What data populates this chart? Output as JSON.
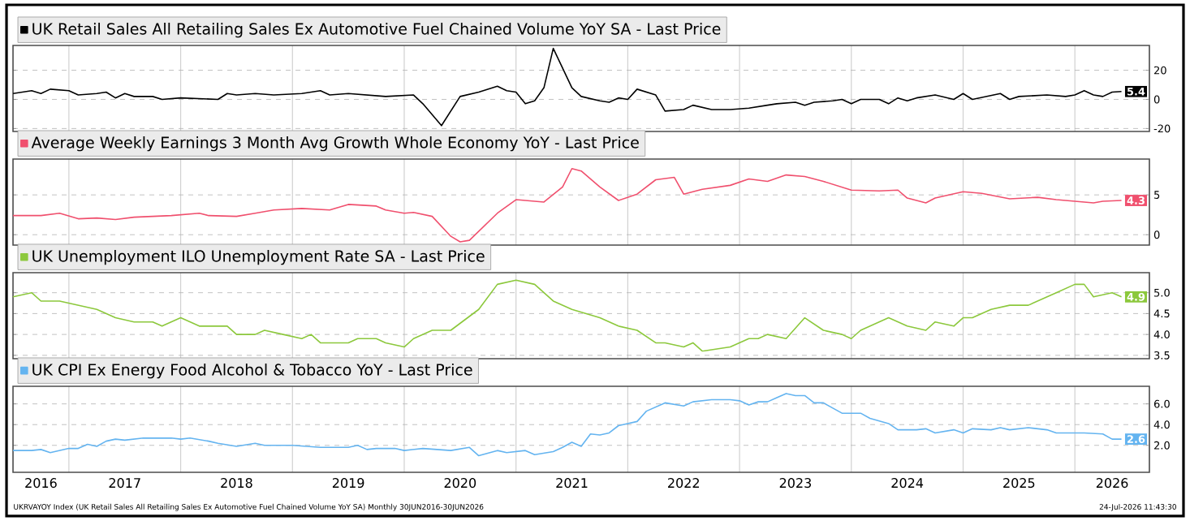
{
  "chart_data": [
    {
      "type": "line",
      "xlim": [
        "2016-07",
        "2026-09"
      ],
      "ylim": [
        -22,
        37
      ],
      "yticks": [
        -20,
        0,
        20
      ],
      "grid": true,
      "legend": "top left",
      "tick_labels": "y",
      "xticks": [
        {
          "value": "2017-01",
          "label": null
        },
        {
          "value": "2018-01",
          "label": null
        },
        {
          "value": "2019-01",
          "label": null
        },
        {
          "value": "2020-01",
          "label": null
        },
        {
          "value": "2021-01",
          "label": null
        },
        {
          "value": "2022-01",
          "label": null
        },
        {
          "value": "2023-01",
          "label": null
        },
        {
          "value": "2024-01",
          "label": null
        },
        {
          "value": "2025-01",
          "label": null
        },
        {
          "value": "2026-01",
          "label": null
        }
      ],
      "series": [
        {
          "name": "UK Retail Sales All Retailing Sales Ex Automotive Fuel Chained Volume YoY SA - Last Price",
          "color": "#000000",
          "x": [
            "2016-07",
            "2016-09",
            "2016-10",
            "2016-11",
            "2017-01",
            "2017-02",
            "2017-04",
            "2017-05",
            "2017-06",
            "2017-07",
            "2017-08",
            "2017-10",
            "2017-11",
            "2018-01",
            "2018-05",
            "2018-06",
            "2018-07",
            "2018-09",
            "2018-11",
            "2019-02",
            "2019-04",
            "2019-05",
            "2019-07",
            "2019-09",
            "2019-11",
            "2020-02",
            "2020-03",
            "2020-05",
            "2020-07",
            "2020-09",
            "2020-11",
            "2020-12",
            "2021-01",
            "2021-02",
            "2021-03",
            "2021-04",
            "2021-05",
            "2021-07",
            "2021-08",
            "2021-10",
            "2021-11",
            "2021-12",
            "2022-01",
            "2022-02",
            "2022-04",
            "2022-05",
            "2022-07",
            "2022-08",
            "2022-10",
            "2022-12",
            "2023-02",
            "2023-04",
            "2023-05",
            "2023-07",
            "2023-08",
            "2023-09",
            "2023-11",
            "2023-12",
            "2024-01",
            "2024-02",
            "2024-04",
            "2024-05",
            "2024-06",
            "2024-07",
            "2024-08",
            "2024-10",
            "2024-12",
            "2025-01",
            "2025-02",
            "2025-05",
            "2025-06",
            "2025-07",
            "2025-10",
            "2025-12",
            "2026-01",
            "2026-02",
            "2026-03",
            "2026-04",
            "2026-05",
            "2026-06"
          ],
          "values": [
            4,
            6,
            4,
            7,
            6,
            3,
            4,
            5,
            1,
            4,
            2,
            2,
            0,
            1,
            0,
            4,
            3,
            4,
            3,
            4,
            6,
            3,
            4,
            3,
            2,
            3,
            -3,
            -18,
            2,
            5,
            9,
            6,
            5,
            -3,
            -1,
            8,
            35,
            8,
            2,
            -1,
            -2,
            1,
            0,
            7,
            3,
            -8,
            -7,
            -4,
            -7,
            -7,
            -6,
            -4,
            -3,
            -2,
            -4,
            -2,
            -1,
            0,
            -3,
            0,
            0,
            -3,
            1,
            -1,
            1,
            3,
            0,
            4,
            0,
            4,
            0,
            2,
            3,
            2,
            3,
            6,
            3,
            2,
            5,
            5.4
          ]
        }
      ],
      "annotations": [
        {
          "text": "5.4",
          "x": "2026-06",
          "y": 5.4
        }
      ]
    },
    {
      "type": "line",
      "xlim": [
        "2016-07",
        "2026-09"
      ],
      "ylim": [
        -1.3,
        9.5
      ],
      "yticks": [
        0,
        5
      ],
      "grid": true,
      "legend": "top left",
      "tick_labels": "y",
      "xticks": [
        {
          "value": "2017-01",
          "label": null
        },
        {
          "value": "2018-01",
          "label": null
        },
        {
          "value": "2019-01",
          "label": null
        },
        {
          "value": "2020-01",
          "label": null
        },
        {
          "value": "2021-01",
          "label": null
        },
        {
          "value": "2022-01",
          "label": null
        },
        {
          "value": "2023-01",
          "label": null
        },
        {
          "value": "2024-01",
          "label": null
        },
        {
          "value": "2025-01",
          "label": null
        },
        {
          "value": "2026-01",
          "label": null
        }
      ],
      "series": [
        {
          "name": "Average Weekly Earnings 3 Month Avg Growth Whole Economy YoY - Last Price",
          "color": "#f0506e",
          "x": [
            "2016-07",
            "2016-10",
            "2016-12",
            "2017-02",
            "2017-04",
            "2017-06",
            "2017-08",
            "2017-10",
            "2017-12",
            "2018-03",
            "2018-04",
            "2018-07",
            "2018-09",
            "2018-11",
            "2019-02",
            "2019-05",
            "2019-07",
            "2019-10",
            "2019-11",
            "2020-01",
            "2020-02",
            "2020-04",
            "2020-06",
            "2020-07",
            "2020-08",
            "2020-11",
            "2021-01",
            "2021-04",
            "2021-06",
            "2021-07",
            "2021-08",
            "2021-10",
            "2021-12",
            "2022-02",
            "2022-04",
            "2022-06",
            "2022-07",
            "2022-09",
            "2022-12",
            "2023-02",
            "2023-04",
            "2023-06",
            "2023-08",
            "2023-10",
            "2024-01",
            "2024-04",
            "2024-06",
            "2024-07",
            "2024-09",
            "2024-10",
            "2025-01",
            "2025-03",
            "2025-06",
            "2025-09",
            "2025-11",
            "2026-03",
            "2026-04",
            "2026-06"
          ],
          "values": [
            2.4,
            2.4,
            2.7,
            2.0,
            2.1,
            1.9,
            2.2,
            2.3,
            2.4,
            2.7,
            2.4,
            2.3,
            2.7,
            3.1,
            3.3,
            3.1,
            3.8,
            3.6,
            3.1,
            2.7,
            2.8,
            2.3,
            -0.2,
            -0.9,
            -0.7,
            2.7,
            4.4,
            4.1,
            6.0,
            8.3,
            8.0,
            6.0,
            4.3,
            5.1,
            6.9,
            7.2,
            5.1,
            5.7,
            6.2,
            7.0,
            6.7,
            7.5,
            7.3,
            6.7,
            5.6,
            5.5,
            5.6,
            4.6,
            4.0,
            4.6,
            5.4,
            5.2,
            4.5,
            4.7,
            4.4,
            4.0,
            4.2,
            4.3
          ]
        }
      ],
      "annotations": [
        {
          "text": "4.3",
          "x": "2026-06",
          "y": 4.3
        }
      ]
    },
    {
      "type": "line",
      "xlim": [
        "2016-07",
        "2026-09"
      ],
      "ylim": [
        3.42,
        5.48
      ],
      "yticks": [
        {
          "value": 3.5,
          "label": "3.5"
        },
        {
          "value": 4,
          "label": "4.0"
        },
        {
          "value": 4.5,
          "label": "4.5"
        },
        {
          "value": 5,
          "label": "5.0"
        }
      ],
      "grid": true,
      "legend": "top left",
      "tick_labels": "y",
      "xticks": [
        {
          "value": "2017-01",
          "label": null
        },
        {
          "value": "2018-01",
          "label": null
        },
        {
          "value": "2019-01",
          "label": null
        },
        {
          "value": "2020-01",
          "label": null
        },
        {
          "value": "2021-01",
          "label": null
        },
        {
          "value": "2022-01",
          "label": null
        },
        {
          "value": "2023-01",
          "label": null
        },
        {
          "value": "2024-01",
          "label": null
        },
        {
          "value": "2025-01",
          "label": null
        },
        {
          "value": "2026-01",
          "label": null
        }
      ],
      "series": [
        {
          "name": "UK Unemployment ILO Unemployment Rate SA - Last Price",
          "color": "#8cc83c",
          "x": [
            "2016-07",
            "2016-09",
            "2016-10",
            "2016-12",
            "2017-02",
            "2017-04",
            "2017-06",
            "2017-08",
            "2017-10",
            "2017-11",
            "2018-01",
            "2018-03",
            "2018-06",
            "2018-07",
            "2018-09",
            "2018-10",
            "2018-12",
            "2019-02",
            "2019-03",
            "2019-04",
            "2019-07",
            "2019-08",
            "2019-10",
            "2019-11",
            "2020-01",
            "2020-02",
            "2020-04",
            "2020-06",
            "2020-09",
            "2020-11",
            "2021-01",
            "2021-03",
            "2021-05",
            "2021-07",
            "2021-10",
            "2021-12",
            "2022-02",
            "2022-04",
            "2022-05",
            "2022-07",
            "2022-08",
            "2022-09",
            "2022-12",
            "2023-02",
            "2023-03",
            "2023-04",
            "2023-06",
            "2023-08",
            "2023-10",
            "2023-12",
            "2024-01",
            "2024-02",
            "2024-05",
            "2024-07",
            "2024-09",
            "2024-10",
            "2024-12",
            "2025-01",
            "2025-02",
            "2025-04",
            "2025-06",
            "2025-08",
            "2025-11",
            "2026-01",
            "2026-02",
            "2026-03",
            "2026-05",
            "2026-06"
          ],
          "values": [
            4.9,
            5.0,
            4.8,
            4.8,
            4.7,
            4.6,
            4.4,
            4.3,
            4.3,
            4.2,
            4.4,
            4.2,
            4.2,
            4.0,
            4.0,
            4.1,
            4.0,
            3.9,
            4.0,
            3.8,
            3.8,
            3.9,
            3.9,
            3.8,
            3.7,
            3.9,
            4.1,
            4.1,
            4.6,
            5.2,
            5.3,
            5.2,
            4.8,
            4.6,
            4.4,
            4.2,
            4.1,
            3.8,
            3.8,
            3.7,
            3.8,
            3.6,
            3.7,
            3.9,
            3.9,
            4.0,
            3.9,
            4.4,
            4.1,
            4.0,
            3.9,
            4.1,
            4.4,
            4.2,
            4.1,
            4.3,
            4.2,
            4.4,
            4.4,
            4.6,
            4.7,
            4.7,
            5.0,
            5.2,
            5.2,
            4.9,
            5.0,
            4.9
          ]
        }
      ],
      "annotations": [
        {
          "text": "4.9",
          "x": "2026-06",
          "y": 4.9
        }
      ]
    },
    {
      "type": "line",
      "xlim": [
        "2016-07",
        "2026-09"
      ],
      "ylim": [
        -0.6,
        7.7
      ],
      "yticks": [
        {
          "value": 2,
          "label": "2.0"
        },
        {
          "value": 4,
          "label": "4.0"
        },
        {
          "value": 6,
          "label": "6.0"
        }
      ],
      "grid": true,
      "legend": "top left",
      "xticks": [
        {
          "value": "2016-10",
          "label": "2016"
        },
        {
          "value": "2017-07",
          "label": "2017"
        },
        {
          "value": "2018-07",
          "label": "2018"
        },
        {
          "value": "2019-07",
          "label": "2019"
        },
        {
          "value": "2020-07",
          "label": "2020"
        },
        {
          "value": "2021-07",
          "label": "2021"
        },
        {
          "value": "2022-07",
          "label": "2022"
        },
        {
          "value": "2023-07",
          "label": "2023"
        },
        {
          "value": "2024-07",
          "label": "2024"
        },
        {
          "value": "2025-07",
          "label": "2025"
        },
        {
          "value": "2026-05",
          "label": "2026"
        },
        {
          "value": "2017-01",
          "label": null
        },
        {
          "value": "2018-01",
          "label": null
        },
        {
          "value": "2019-01",
          "label": null
        },
        {
          "value": "2020-01",
          "label": null
        },
        {
          "value": "2021-01",
          "label": null
        },
        {
          "value": "2022-01",
          "label": null
        },
        {
          "value": "2023-01",
          "label": null
        },
        {
          "value": "2024-01",
          "label": null
        },
        {
          "value": "2025-01",
          "label": null
        },
        {
          "value": "2026-01",
          "label": null
        }
      ],
      "series": [
        {
          "name": "UK CPI Ex Energy Food Alcohol & Tobacco YoY - Last Price",
          "color": "#64b4f0",
          "x": [
            "2016-07",
            "2016-09",
            "2016-10",
            "2016-11",
            "2017-01",
            "2017-02",
            "2017-03",
            "2017-04",
            "2017-05",
            "2017-06",
            "2017-07",
            "2017-09",
            "2017-12",
            "2018-01",
            "2018-02",
            "2018-04",
            "2018-05",
            "2018-07",
            "2018-09",
            "2018-10",
            "2019-01",
            "2019-04",
            "2019-07",
            "2019-08",
            "2019-09",
            "2019-10",
            "2019-12",
            "2020-01",
            "2020-03",
            "2020-06",
            "2020-08",
            "2020-09",
            "2020-11",
            "2020-12",
            "2021-02",
            "2021-03",
            "2021-05",
            "2021-06",
            "2021-07",
            "2021-08",
            "2021-09",
            "2021-10",
            "2021-11",
            "2021-12",
            "2022-02",
            "2022-03",
            "2022-05",
            "2022-07",
            "2022-08",
            "2022-10",
            "2022-12",
            "2023-01",
            "2023-02",
            "2023-03",
            "2023-04",
            "2023-05",
            "2023-06",
            "2023-07",
            "2023-08",
            "2023-09",
            "2023-10",
            "2023-12",
            "2024-02",
            "2024-03",
            "2024-05",
            "2024-06",
            "2024-08",
            "2024-09",
            "2024-10",
            "2024-12",
            "2025-01",
            "2025-02",
            "2025-04",
            "2025-05",
            "2025-06",
            "2025-08",
            "2025-10",
            "2025-11",
            "2025-12",
            "2026-02",
            "2026-04",
            "2026-05",
            "2026-06"
          ],
          "values": [
            1.5,
            1.5,
            1.6,
            1.3,
            1.7,
            1.7,
            2.1,
            1.9,
            2.4,
            2.6,
            2.5,
            2.7,
            2.7,
            2.6,
            2.7,
            2.4,
            2.2,
            1.9,
            2.2,
            2.0,
            2.0,
            1.8,
            1.8,
            2.0,
            1.6,
            1.7,
            1.7,
            1.5,
            1.7,
            1.5,
            1.8,
            1.0,
            1.5,
            1.3,
            1.5,
            1.1,
            1.4,
            1.8,
            2.3,
            1.9,
            3.1,
            3.0,
            3.2,
            3.9,
            4.3,
            5.3,
            6.1,
            5.8,
            6.2,
            6.4,
            6.4,
            6.3,
            5.9,
            6.2,
            6.2,
            6.6,
            7.0,
            6.8,
            6.8,
            6.1,
            6.1,
            5.1,
            5.1,
            4.6,
            4.1,
            3.5,
            3.5,
            3.6,
            3.2,
            3.5,
            3.2,
            3.6,
            3.5,
            3.7,
            3.5,
            3.7,
            3.5,
            3.2,
            3.2,
            3.2,
            3.1,
            2.6,
            2.6
          ]
        }
      ],
      "annotations": [
        {
          "text": "2.6",
          "x": "2026-06",
          "y": 2.6
        },
        "UKRVAYOY Index (UK Retail Sales All Retailing Sales Ex Automotive Fuel Chained Volume YoY SA) Monthly 30JUN2016-30JUN2026",
        "24-Jul-2026 11:43:30"
      ]
    }
  ]
}
